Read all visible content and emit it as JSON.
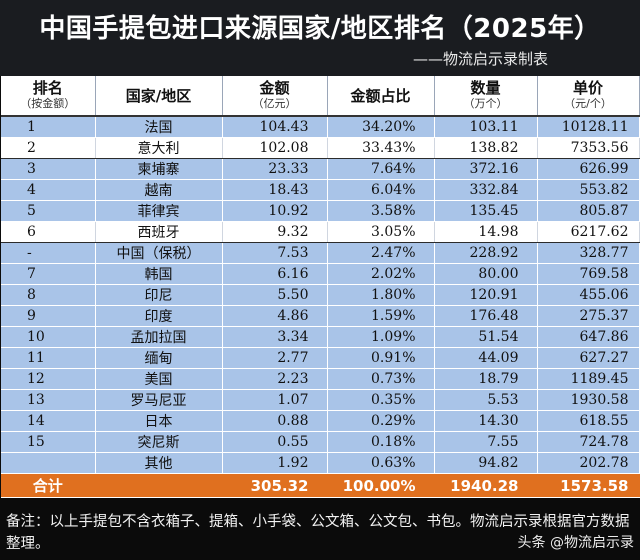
{
  "title": "中国手提包进口来源国家/地区排名（2025年）",
  "subtitle": "——物流启示录制表",
  "headers": {
    "rank": "排名",
    "rank_sub": "（按金额）",
    "country": "国家/地区",
    "amount": "金额",
    "amount_sub": "（亿元）",
    "share": "金额占比",
    "qty": "数量",
    "qty_sub": "（万个）",
    "price": "单价",
    "price_sub": "（元/个）"
  },
  "rows": [
    {
      "rank": "1",
      "country": "法国",
      "amount": "104.43",
      "share": "34.20%",
      "qty": "103.11",
      "price": "10128.11",
      "style": "blue"
    },
    {
      "rank": "2",
      "country": "意大利",
      "amount": "102.08",
      "share": "33.43%",
      "qty": "138.82",
      "price": "7353.56",
      "style": "white"
    },
    {
      "rank": "3",
      "country": "柬埔寨",
      "amount": "23.33",
      "share": "7.64%",
      "qty": "372.16",
      "price": "626.99",
      "style": "blue"
    },
    {
      "rank": "4",
      "country": "越南",
      "amount": "18.43",
      "share": "6.04%",
      "qty": "332.84",
      "price": "553.82",
      "style": "blue"
    },
    {
      "rank": "5",
      "country": "菲律宾",
      "amount": "10.92",
      "share": "3.58%",
      "qty": "135.45",
      "price": "805.87",
      "style": "blue"
    },
    {
      "rank": "6",
      "country": "西班牙",
      "amount": "9.32",
      "share": "3.05%",
      "qty": "14.98",
      "price": "6217.62",
      "style": "white"
    },
    {
      "rank": "-",
      "country": "中国（保税）",
      "amount": "7.53",
      "share": "2.47%",
      "qty": "228.92",
      "price": "328.77",
      "style": "blue"
    },
    {
      "rank": "7",
      "country": "韩国",
      "amount": "6.16",
      "share": "2.02%",
      "qty": "80.00",
      "price": "769.58",
      "style": "blue"
    },
    {
      "rank": "8",
      "country": "印尼",
      "amount": "5.50",
      "share": "1.80%",
      "qty": "120.91",
      "price": "455.06",
      "style": "blue"
    },
    {
      "rank": "9",
      "country": "印度",
      "amount": "4.86",
      "share": "1.59%",
      "qty": "176.48",
      "price": "275.37",
      "style": "blue"
    },
    {
      "rank": "10",
      "country": "孟加拉国",
      "amount": "3.34",
      "share": "1.09%",
      "qty": "51.54",
      "price": "647.86",
      "style": "blue"
    },
    {
      "rank": "11",
      "country": "缅甸",
      "amount": "2.77",
      "share": "0.91%",
      "qty": "44.09",
      "price": "627.27",
      "style": "blue"
    },
    {
      "rank": "12",
      "country": "美国",
      "amount": "2.23",
      "share": "0.73%",
      "qty": "18.79",
      "price": "1189.45",
      "style": "blue"
    },
    {
      "rank": "13",
      "country": "罗马尼亚",
      "amount": "1.07",
      "share": "0.35%",
      "qty": "5.53",
      "price": "1930.58",
      "style": "blue"
    },
    {
      "rank": "14",
      "country": "日本",
      "amount": "0.88",
      "share": "0.29%",
      "qty": "14.30",
      "price": "618.55",
      "style": "blue"
    },
    {
      "rank": "15",
      "country": "突尼斯",
      "amount": "0.55",
      "share": "0.18%",
      "qty": "7.55",
      "price": "724.78",
      "style": "blue"
    },
    {
      "rank": "",
      "country": "其他",
      "amount": "1.92",
      "share": "0.63%",
      "qty": "94.82",
      "price": "202.78",
      "style": "blue"
    }
  ],
  "total": {
    "label": "合计",
    "amount": "305.32",
    "share": "100.00%",
    "qty": "1940.28",
    "price": "1573.58"
  },
  "note": "备注：以上手提包不含衣箱子、提箱、小手袋、公文箱、公文包、书包。物流启示录根据官方数据整理。",
  "watermark": "头条 @物流启示录",
  "colors": {
    "header_bg": "#1a1c20",
    "row_blue": "#a9c4e8",
    "row_white": "#ffffff",
    "total_bg": "#e0701f"
  }
}
